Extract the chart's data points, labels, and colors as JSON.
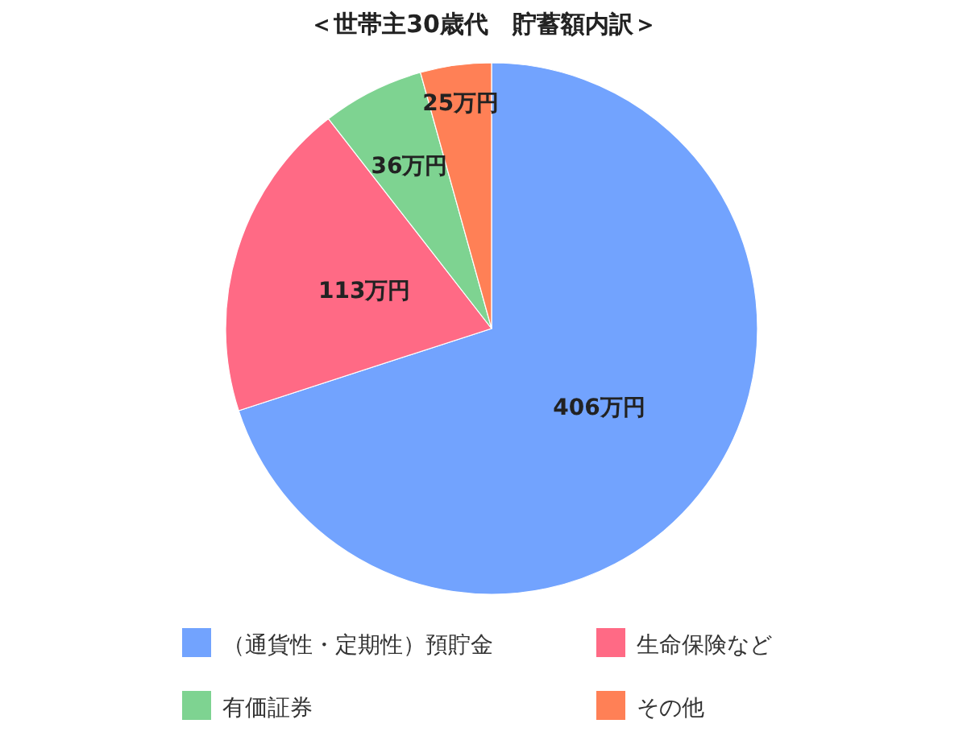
{
  "chart_data": {
    "type": "pie",
    "title": "＜世帯主30歳代　貯蓄額内訳＞",
    "categories": [
      "（通貨性・定期性）預貯金",
      "生命保険など",
      "有価証券",
      "その他"
    ],
    "values": [
      406,
      113,
      36,
      25
    ],
    "colors": [
      "#72a3fe",
      "#ff6a85",
      "#7ed391",
      "#ff8056"
    ],
    "value_labels": [
      "406万円",
      "113万円",
      "36万円",
      "25万円"
    ],
    "legend": "bottom"
  }
}
